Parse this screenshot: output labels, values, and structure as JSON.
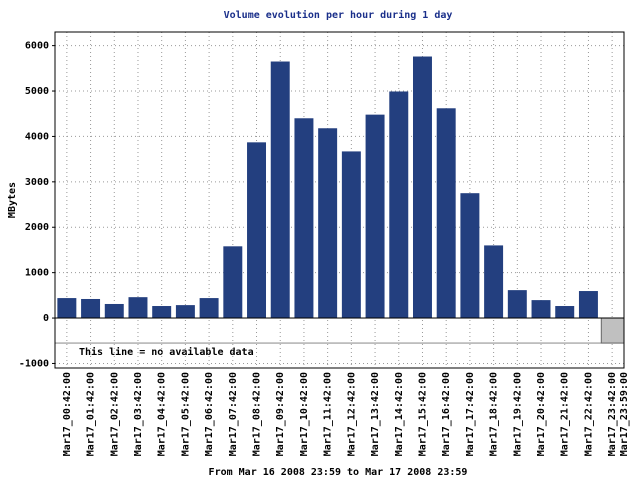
{
  "chart_data": {
    "type": "bar",
    "title": "Volume evolution per hour during 1 day",
    "ylabel": "MBytes",
    "xlabel": "From Mar 16 2008 23:59 to Mar 17 2008 23:59",
    "legend_note": "This line = no available data",
    "categories": [
      "Mar17_00:42:00",
      "Mar17_01:42:00",
      "Mar17_02:42:00",
      "Mar17_03:42:00",
      "Mar17_04:42:00",
      "Mar17_05:42:00",
      "Mar17_06:42:00",
      "Mar17_07:42:00",
      "Mar17_08:42:00",
      "Mar17_09:42:00",
      "Mar17_10:42:00",
      "Mar17_11:42:00",
      "Mar17_12:42:00",
      "Mar17_13:42:00",
      "Mar17_14:42:00",
      "Mar17_15:42:00",
      "Mar17_16:42:00",
      "Mar17_17:42:00",
      "Mar17_18:42:00",
      "Mar17_19:42:00",
      "Mar17_20:42:00",
      "Mar17_21:42:00",
      "Mar17_22:42:00",
      "Mar17_23:42:00"
    ],
    "end_label": "Mar17_23:59:00",
    "values": [
      440,
      420,
      310,
      460,
      265,
      285,
      440,
      1580,
      3870,
      5650,
      4400,
      4180,
      3670,
      4480,
      4990,
      5760,
      4620,
      2750,
      1600,
      615,
      395,
      265,
      595,
      null
    ],
    "color": "#233f7f",
    "no_data_color": "#c0c0c0",
    "ylim": [
      -1100,
      6300
    ],
    "yticks": [
      -1000,
      0,
      1000,
      2000,
      3000,
      4000,
      5000,
      6000
    ],
    "grid": true
  }
}
